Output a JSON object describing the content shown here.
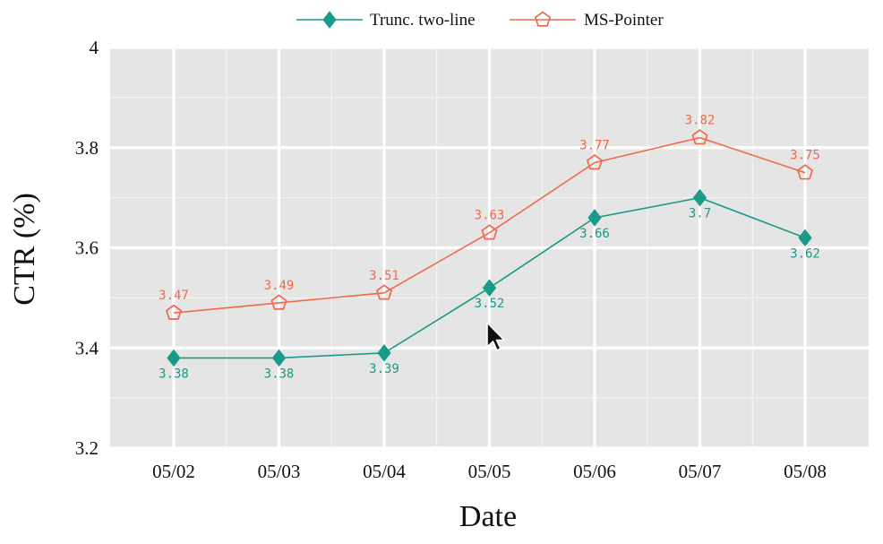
{
  "chart_data": {
    "type": "line",
    "categories": [
      "05/02",
      "05/03",
      "05/04",
      "05/05",
      "05/06",
      "05/07",
      "05/08"
    ],
    "series": [
      {
        "name": "Trunc. two-line",
        "values": [
          3.38,
          3.38,
          3.39,
          3.52,
          3.66,
          3.7,
          3.62
        ],
        "labels": [
          "3.38",
          "3.38",
          "3.39",
          "3.52",
          "3.66",
          "3.7",
          "3.62"
        ],
        "color": "#1a9a88",
        "marker": "filled-diamond",
        "label_position": "below"
      },
      {
        "name": "MS-Pointer",
        "values": [
          3.47,
          3.49,
          3.51,
          3.63,
          3.77,
          3.82,
          3.75
        ],
        "labels": [
          "3.47",
          "3.49",
          "3.51",
          "3.63",
          "3.77",
          "3.82",
          "3.75"
        ],
        "color": "#ee6a4a",
        "marker": "open-pentagon",
        "label_position": "above"
      }
    ],
    "xlabel": "Date",
    "ylabel": "CTR (%)",
    "ylim": [
      3.2,
      4.0
    ],
    "yticks": [
      3.2,
      3.4,
      3.6,
      3.8,
      4.0
    ],
    "ytick_labels": [
      "3.2",
      "3.4",
      "3.6",
      "3.8",
      "4"
    ],
    "grid": true,
    "panel_background": "#e5e5e5",
    "legend_position": "top-center"
  }
}
